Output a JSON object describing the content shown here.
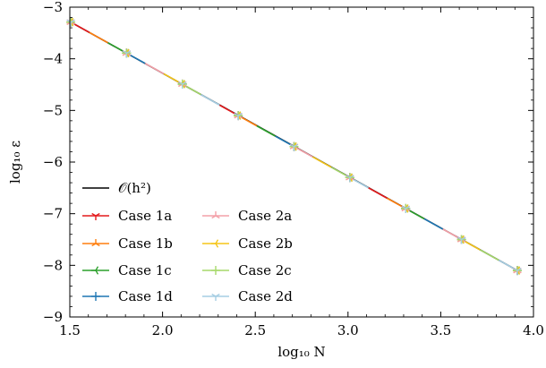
{
  "chart_data": {
    "type": "line",
    "xlabel": "log₁₀ N",
    "ylabel": "log₁₀ ε",
    "xlim": [
      1.5,
      4.0
    ],
    "ylim": [
      -9,
      -3
    ],
    "xticks": [
      "1.5",
      "2.0",
      "2.5",
      "3.0",
      "3.5",
      "4.0"
    ],
    "yticks": [
      "−9",
      "−8",
      "−7",
      "−6",
      "−5",
      "−4",
      "−3"
    ],
    "legend_position": "lower-left",
    "grid": false,
    "reference": {
      "name": "𝒪(h²)",
      "color": "#000000",
      "x": [
        1.505,
        3.913
      ],
      "y": [
        -3.29,
        -8.1
      ]
    },
    "x": [
      1.505,
      1.806,
      2.107,
      2.408,
      2.709,
      3.01,
      3.311,
      3.612,
      3.913
    ],
    "series": [
      {
        "name": "Case 1a",
        "color": "#e41a1c",
        "marker": "tri_down",
        "values": [
          -3.29,
          -3.89,
          -4.49,
          -5.1,
          -5.7,
          -6.3,
          -6.9,
          -7.5,
          -8.1
        ]
      },
      {
        "name": "Case 1b",
        "color": "#ff7f0e",
        "marker": "tri_up",
        "values": [
          -3.29,
          -3.89,
          -4.49,
          -5.1,
          -5.7,
          -6.3,
          -6.9,
          -7.5,
          -8.1
        ]
      },
      {
        "name": "Case 1c",
        "color": "#2ca02c",
        "marker": "tri_left",
        "values": [
          -3.29,
          -3.89,
          -4.49,
          -5.1,
          -5.7,
          -6.3,
          -6.9,
          -7.5,
          -8.1
        ]
      },
      {
        "name": "Case 1d",
        "color": "#1f77b4",
        "marker": "plus",
        "values": [
          -3.29,
          -3.89,
          -4.49,
          -5.1,
          -5.7,
          -6.3,
          -6.9,
          -7.5,
          -8.1
        ]
      },
      {
        "name": "Case 2a",
        "color": "#f4a0a8",
        "marker": "tri_up",
        "values": [
          -3.29,
          -3.89,
          -4.49,
          -5.1,
          -5.7,
          -6.3,
          -6.9,
          -7.5,
          -8.1
        ]
      },
      {
        "name": "Case 2b",
        "color": "#f5c518",
        "marker": "tri_left",
        "values": [
          -3.29,
          -3.89,
          -4.49,
          -5.1,
          -5.7,
          -6.3,
          -6.9,
          -7.5,
          -8.1
        ]
      },
      {
        "name": "Case 2c",
        "color": "#a6d96a",
        "marker": "plus",
        "values": [
          -3.29,
          -3.89,
          -4.49,
          -5.1,
          -5.7,
          -6.3,
          -6.9,
          -7.5,
          -8.1
        ]
      },
      {
        "name": "Case 2d",
        "color": "#a6cee3",
        "marker": "tri_down",
        "values": [
          -3.29,
          -3.89,
          -4.49,
          -5.1,
          -5.7,
          -6.3,
          -6.9,
          -7.5,
          -8.1
        ]
      }
    ]
  }
}
